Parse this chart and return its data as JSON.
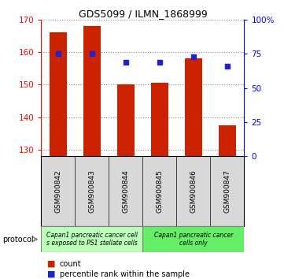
{
  "title": "GDS5099 / ILMN_1868999",
  "samples": [
    "GSM900842",
    "GSM900843",
    "GSM900844",
    "GSM900845",
    "GSM900846",
    "GSM900847"
  ],
  "counts": [
    166.0,
    168.0,
    150.0,
    150.5,
    158.0,
    137.5
  ],
  "percentile_ranks": [
    75,
    75,
    69,
    69,
    73,
    66
  ],
  "ylim_left": [
    128,
    170
  ],
  "ylim_right": [
    0,
    100
  ],
  "yticks_left": [
    130,
    140,
    150,
    160,
    170
  ],
  "yticks_right": [
    0,
    25,
    50,
    75,
    100
  ],
  "ytick_labels_right": [
    "0",
    "25",
    "50",
    "75",
    "100%"
  ],
  "bar_color": "#cc2200",
  "dot_color": "#2222cc",
  "bar_width": 0.5,
  "bar_bottom": 128,
  "group1_label": "Capan1 pancreatic cancer cell\ns exposed to PS1 stellate cells",
  "group2_label": "Capan1 pancreatic cancer\ncells only",
  "group1_indices": [
    0,
    1,
    2
  ],
  "group2_indices": [
    3,
    4,
    5
  ],
  "group1_color": "#bbffbb",
  "group2_color": "#66ee66",
  "protocol_label": "protocol",
  "legend_count_label": "count",
  "legend_pct_label": "percentile rank within the sample",
  "grid_color": "#888888",
  "bg_color": "#d8d8d8"
}
